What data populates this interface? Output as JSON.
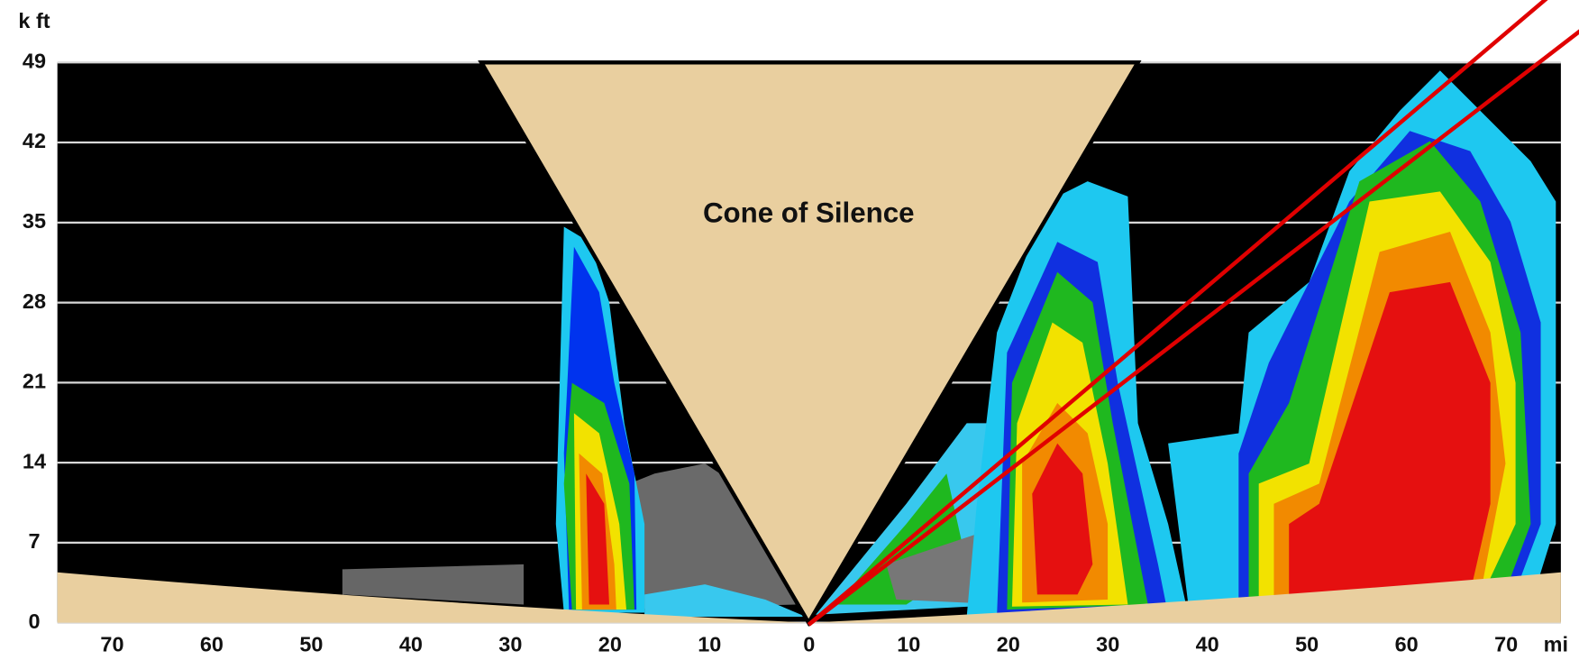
{
  "chart_data": {
    "type": "cross-section",
    "annotation": "Cone of Silence",
    "x_label": "mi",
    "y_label": "k ft",
    "xlim": [
      -75.5,
      75.5
    ],
    "xticks": [
      {
        "value": -70,
        "label": "70"
      },
      {
        "value": -60,
        "label": "60"
      },
      {
        "value": -50,
        "label": "50"
      },
      {
        "value": -40,
        "label": "40"
      },
      {
        "value": -30,
        "label": "30"
      },
      {
        "value": -20,
        "label": "20"
      },
      {
        "value": -10,
        "label": "10"
      },
      0,
      10,
      20,
      30,
      40,
      50,
      60,
      70
    ],
    "ylim": [
      0,
      49
    ],
    "yticks": [
      0,
      7,
      14,
      21,
      28,
      35,
      42,
      49
    ],
    "grid": true
  }
}
